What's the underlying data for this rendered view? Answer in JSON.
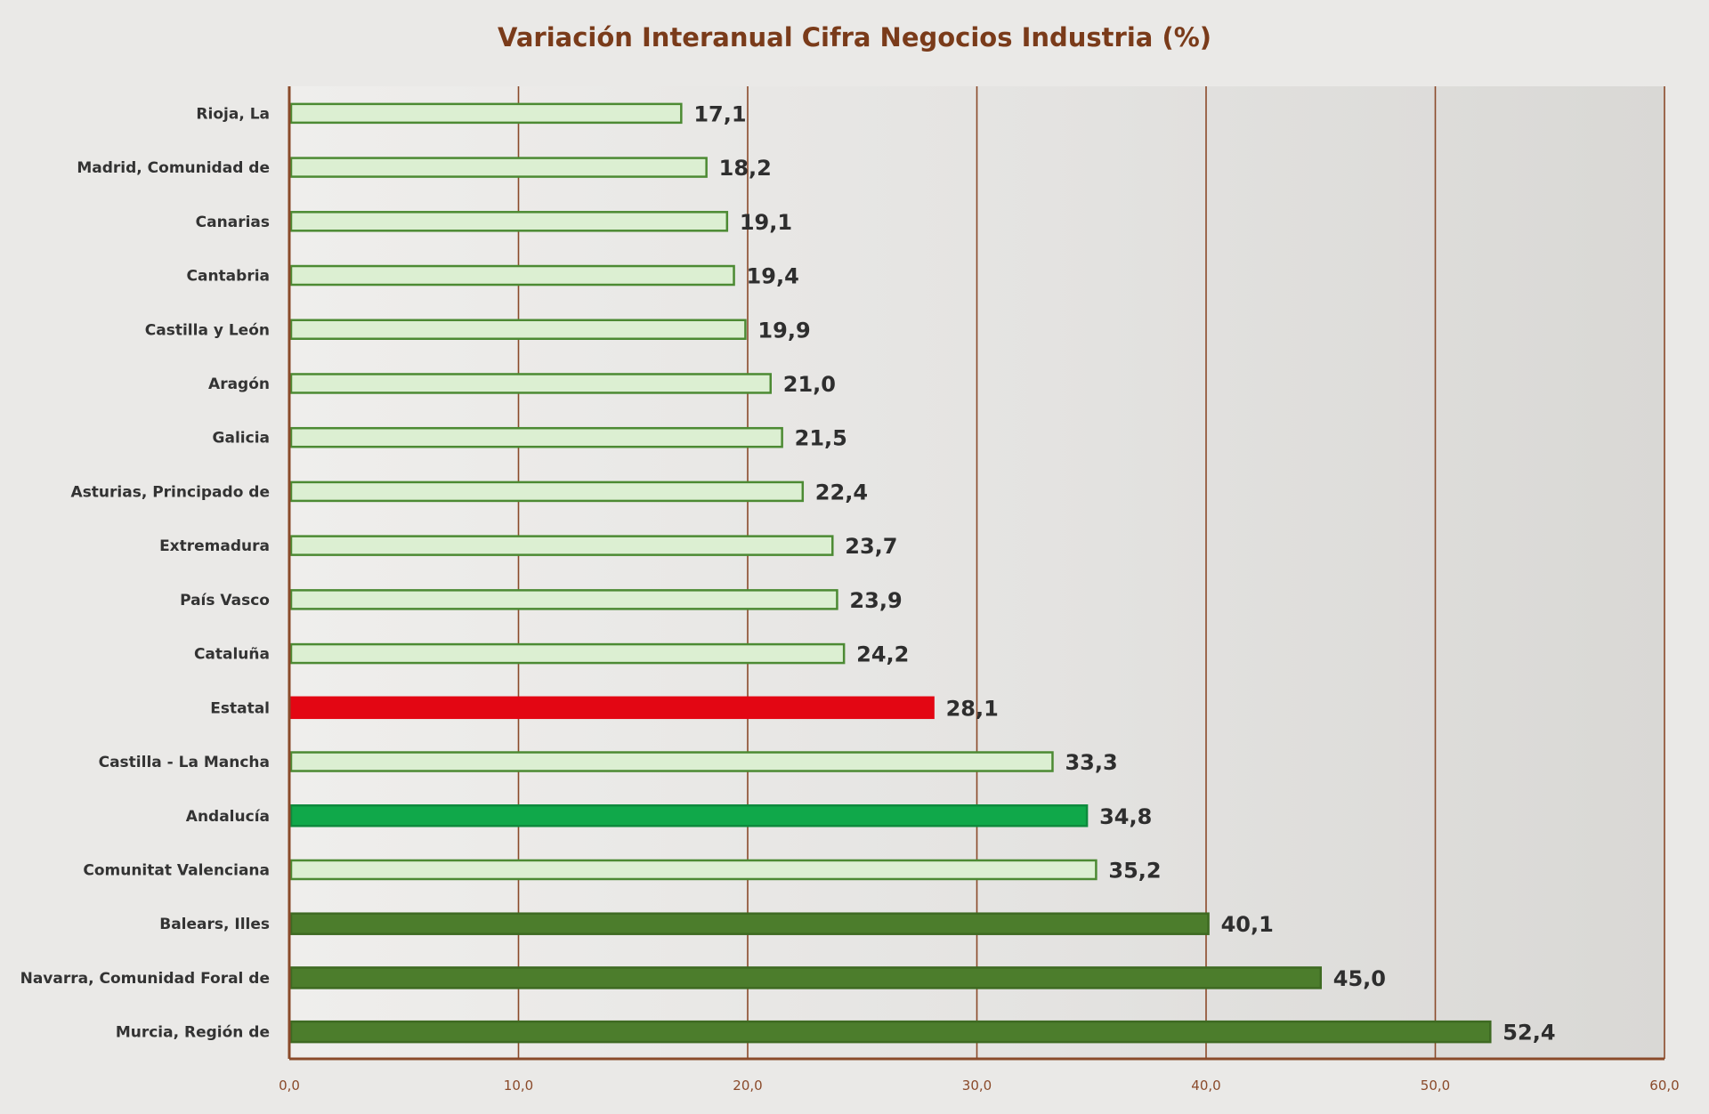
{
  "chart_data": {
    "type": "bar",
    "orientation": "horizontal",
    "title": "Variación Interanual Cifra Negocios Industria (%)",
    "xlabel": "",
    "ylabel": "",
    "xlim": [
      0,
      60
    ],
    "x_ticks": [
      "0,0",
      "10,0",
      "20,0",
      "30,0",
      "40,0",
      "50,0",
      "60,0"
    ],
    "grid": "vertical",
    "legend": "none",
    "colors": {
      "title": "#7a3b1a",
      "axis": "#8a4a2a",
      "grid": "#8a4a2a",
      "category_text": "#333333",
      "value_text": "#2e2e2e",
      "default_fill": "#dcefd2",
      "default_stroke": "#4c8a33",
      "highlight_red": "#e30613",
      "highlight_green": "#10a84a",
      "top_fill": "#4c7d2c"
    },
    "categories": [
      "Rioja, La",
      "Madrid, Comunidad de",
      "Canarias",
      "Cantabria",
      "Castilla y León",
      "Aragón",
      "Galicia",
      "Asturias, Principado de",
      "Extremadura",
      "País Vasco",
      "Cataluña",
      "Estatal",
      "Castilla - La Mancha",
      "Andalucía",
      "Comunitat Valenciana",
      "Balears, Illes",
      "Navarra, Comunidad Foral de",
      "Murcia, Región de"
    ],
    "values": [
      17.1,
      18.2,
      19.1,
      19.4,
      19.9,
      21.0,
      21.5,
      22.4,
      23.7,
      23.9,
      24.2,
      28.1,
      33.3,
      34.8,
      35.2,
      40.1,
      45.0,
      52.4
    ],
    "value_labels": [
      "17,1",
      "18,2",
      "19,1",
      "19,4",
      "19,9",
      "21,0",
      "21,5",
      "22,4",
      "23,7",
      "23,9",
      "24,2",
      "28,1",
      "33,3",
      "34,8",
      "35,2",
      "40,1",
      "45,0",
      "52,4"
    ],
    "bar_styles": [
      "light",
      "light",
      "light",
      "light",
      "light",
      "light",
      "light",
      "light",
      "light",
      "light",
      "light",
      "red",
      "light",
      "green",
      "light",
      "dark",
      "dark",
      "dark"
    ]
  }
}
